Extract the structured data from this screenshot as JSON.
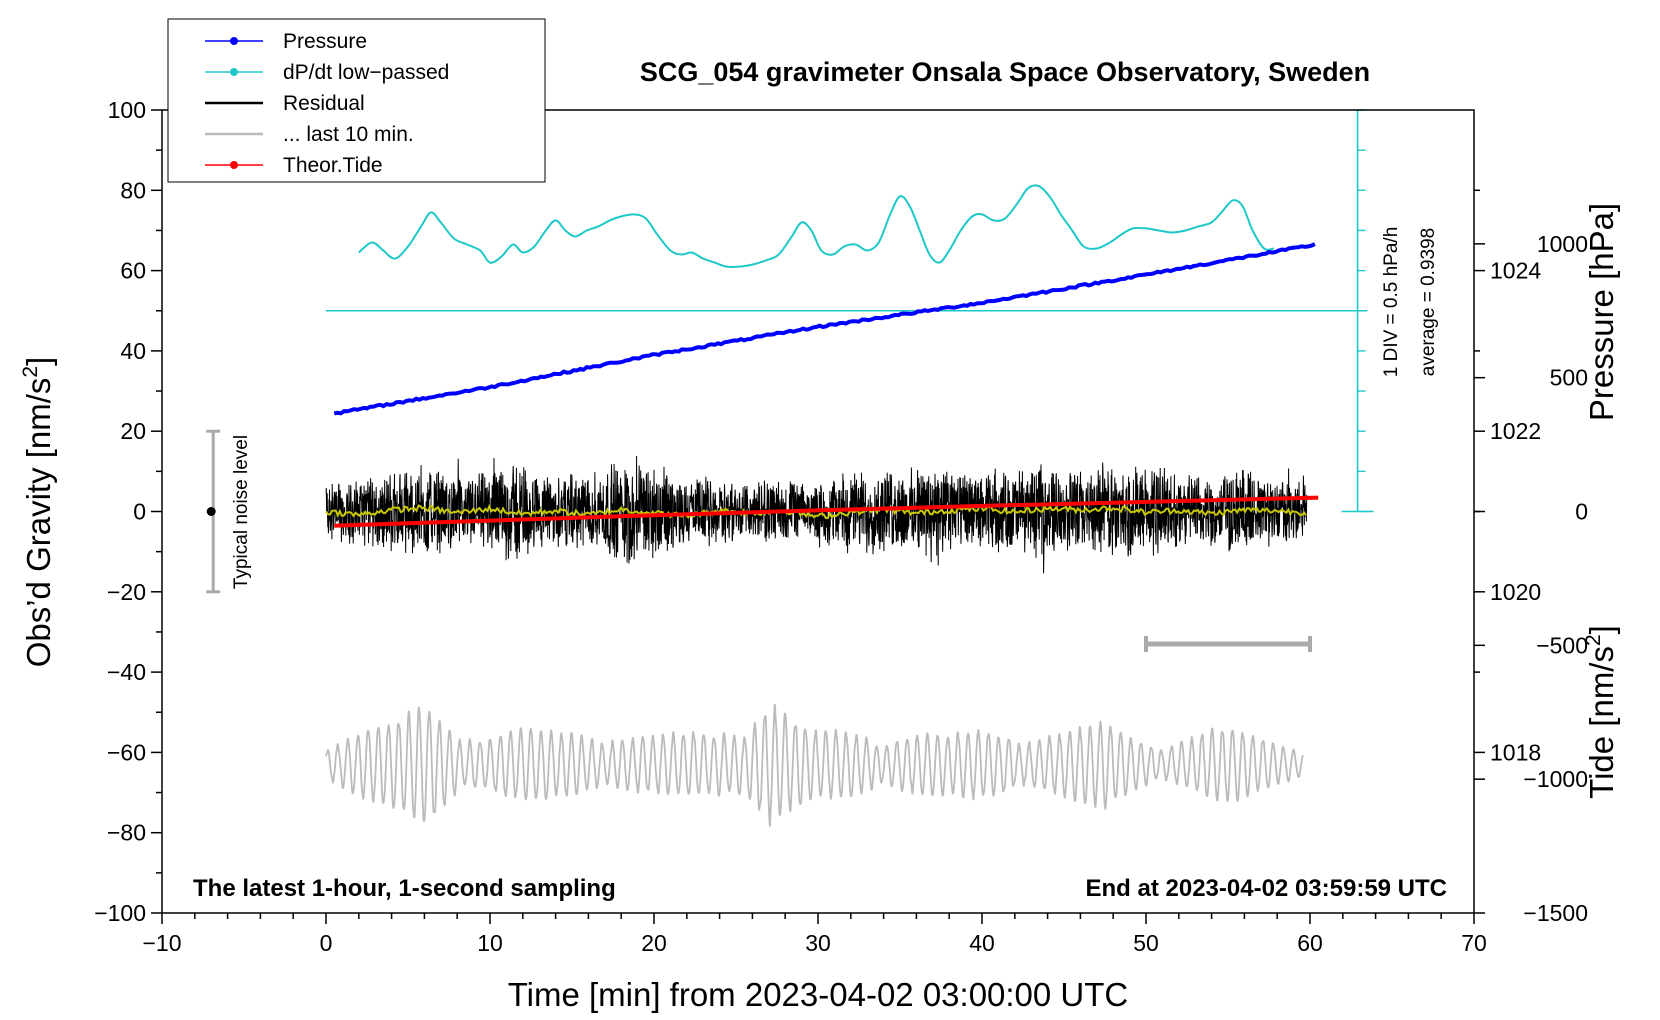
{
  "colors": {
    "pressure": "#0000ff",
    "dpdt": "#1ec8c8",
    "residual": "#000000",
    "last10": "#bbbbbb",
    "tide": "#ff0000",
    "smooth_residual": "#c8c800",
    "noise_bar": "#aaaaaa"
  },
  "chart_data": {
    "type": "line",
    "title": "SCG_054 gravimeter Onsala Space Observatory, Sweden",
    "footer_left": "The latest 1-hour, 1-second sampling",
    "footer_right": "End at 2023-04-02 03:59:59 UTC",
    "x_axis": {
      "label": "Time [min] from 2023-04-02 03:00:00 UTC",
      "range": [
        -10,
        70
      ],
      "ticks": [
        "−10",
        "0",
        "10",
        "20",
        "30",
        "40",
        "50",
        "60",
        "70"
      ]
    },
    "y_left": {
      "label_main": "Obs’d Gravity [nm/s",
      "label_sup": "2",
      "label_end": "]",
      "range": [
        -100,
        100
      ],
      "ticks": [
        "−100",
        "−80",
        "−60",
        "−40",
        "−20",
        "0",
        "20",
        "40",
        "60",
        "80",
        "100"
      ]
    },
    "y_pressure": {
      "label": "Pressure [hPa]",
      "range_hpa": [
        1016,
        1026
      ],
      "ticks": [
        "1018",
        "1020",
        "1022",
        "1024"
      ]
    },
    "y_tide": {
      "label_main": "Tide [nm/s",
      "label_sup": "2",
      "label_end": "]",
      "range": [
        -1500,
        1500
      ],
      "ticks": [
        "−1500",
        "−1000",
        "−500",
        "0",
        "500",
        "1000"
      ]
    },
    "legend": [
      {
        "label": "Pressure",
        "style": "line-dot",
        "color_key": "pressure"
      },
      {
        "label": "dP/dt low−passed",
        "style": "line-dot",
        "color_key": "dpdt"
      },
      {
        "label": "Residual",
        "style": "line",
        "color_key": "residual"
      },
      {
        "label": "... last 10 min.",
        "style": "line",
        "color_key": "last10"
      },
      {
        "label": "Theor.Tide",
        "style": "line-dot",
        "color_key": "tide"
      }
    ],
    "annotations": {
      "noise_label": "Typical noise level",
      "div_label": "1 DIV = 0.5 hPa/h",
      "average_label": "average = 0.9398"
    },
    "noise_bar": {
      "x": -7,
      "y_low": -20,
      "y_high": 20
    },
    "last10_bar": {
      "x_start": 50,
      "x_end": 60,
      "y": -33
    },
    "dpdt_scale": {
      "x": 62.9,
      "y_low": 0,
      "y_high": 100,
      "baseline_y": 50,
      "baseline_x_start": 0,
      "baseline_x_end": 63.5
    },
    "series": [
      {
        "name": "Pressure",
        "unit": "hPa",
        "x": [
          0.5,
          10,
          20,
          30,
          40,
          50,
          60.5
        ],
        "values": [
          1022.22,
          1022.55,
          1022.95,
          1023.3,
          1023.6,
          1023.95,
          1024.33
        ]
      },
      {
        "name": "dP/dt low-passed",
        "unit": "left-axis units",
        "x": [
          2,
          2.8,
          3.5,
          4.2,
          5,
          5.8,
          6.4,
          7,
          7.8,
          8.6,
          9.4,
          10,
          10.7,
          11.4,
          12,
          12.7,
          13.4,
          14,
          14.6,
          15.2,
          15.9,
          16.6,
          17.3,
          18,
          18.8,
          19.5,
          20.2,
          21,
          21.7,
          22.3,
          23,
          23.7,
          24.4,
          25.2,
          26,
          26.8,
          27.6,
          28.4,
          29,
          29.6,
          30.2,
          30.9,
          31.6,
          32.3,
          33,
          33.7,
          34.4,
          35,
          35.6,
          36.2,
          36.8,
          37.4,
          38,
          38.7,
          39.4,
          40,
          40.7,
          41.4,
          42.2,
          42.8,
          43.5,
          44.2,
          44.8,
          45.5,
          46.2,
          47,
          47.8,
          48.5,
          49.2,
          50,
          50.8,
          51.6,
          52.4,
          53.2,
          54,
          54.6,
          55.3,
          55.9,
          56.5,
          57.2,
          57.8
        ],
        "values": [
          64.5,
          67,
          65,
          63,
          66,
          71,
          74.5,
          72,
          68,
          66.5,
          65,
          62,
          63.5,
          66.5,
          64.5,
          66,
          70,
          72.5,
          70,
          68.5,
          70,
          71,
          72.5,
          73.5,
          74,
          73,
          69,
          65,
          64,
          64.5,
          63,
          62,
          61,
          61,
          61.5,
          62.5,
          64,
          68.5,
          72,
          70,
          65,
          64,
          66,
          66.5,
          65,
          67,
          74,
          78.5,
          76,
          70,
          64,
          62,
          65,
          70,
          73.5,
          74,
          72.5,
          73,
          77,
          80.5,
          81,
          78,
          74,
          70,
          66,
          65.5,
          67,
          69,
          70.5,
          70.5,
          70,
          69.5,
          70,
          71,
          72,
          74.5,
          77.5,
          76,
          70,
          65.5,
          65.5
        ]
      },
      {
        "name": "Residual",
        "unit": "nm/s²",
        "envelope_x": [
          0,
          2,
          4,
          6,
          8,
          10,
          10.8,
          11.5,
          13,
          15,
          17,
          18.5,
          20.5,
          22,
          24,
          26,
          27.5,
          29.5,
          31,
          33,
          35,
          37,
          39.5,
          41,
          43,
          45,
          47,
          47.5,
          48.5,
          50.5,
          52.5,
          54.5,
          55.7,
          57,
          59,
          59.8
        ],
        "envelope_amplitude": [
          10,
          11,
          13,
          14,
          12,
          13,
          15,
          18,
          12,
          12,
          14,
          18,
          15,
          11,
          12,
          10,
          11,
          8,
          12,
          14,
          13,
          16,
          12,
          13,
          15,
          14,
          14,
          17,
          14,
          16,
          12,
          12,
          15,
          12,
          10,
          10
        ]
      },
      {
        "name": "Residual smoothed",
        "unit": "nm/s²",
        "x": [
          0,
          2,
          4,
          6,
          8,
          10,
          12,
          14,
          16,
          18,
          20,
          22,
          24,
          26,
          28,
          30,
          32,
          34,
          36,
          38,
          40,
          42,
          44,
          46,
          48,
          50,
          52,
          54,
          56,
          58,
          59.8
        ],
        "values": [
          0,
          -0.8,
          0.4,
          0.9,
          -0.3,
          0.7,
          -0.6,
          0.2,
          -0.8,
          0.5,
          -0.4,
          -1.1,
          0.3,
          -0.4,
          0.2,
          -1.3,
          -0.2,
          0.5,
          -0.4,
          0.3,
          0.7,
          -0.1,
          0.8,
          0.4,
          0.9,
          -0.2,
          0.3,
          -0.5,
          0.4,
          0.2,
          -0.3
        ]
      },
      {
        "name": "... last 10 min.",
        "unit": "nm/s²",
        "center": -63,
        "envelope_x": [
          0,
          2,
          4.5,
          6.3,
          8,
          10,
          12,
          14,
          16,
          18,
          20,
          22,
          24,
          25.5,
          27,
          28.5,
          30,
          32,
          34,
          36,
          38,
          40,
          42,
          44,
          46,
          47.5,
          49,
          51,
          53,
          55,
          57,
          59.5
        ],
        "envelope_amplitude": [
          6,
          9,
          11,
          16,
          10,
          8,
          9,
          8,
          9,
          8,
          7,
          8,
          9,
          12,
          18,
          11,
          8,
          9,
          8,
          8,
          7,
          9,
          9,
          8,
          9,
          11,
          8,
          6,
          8,
          9,
          7,
          5
        ]
      },
      {
        "name": "Theor.Tide",
        "unit": "nm/s²",
        "x": [
          0.5,
          10,
          20,
          30,
          40,
          50,
          60.5
        ],
        "values": [
          -53,
          -34,
          -14,
          4,
          21,
          36,
          52
        ]
      }
    ]
  }
}
